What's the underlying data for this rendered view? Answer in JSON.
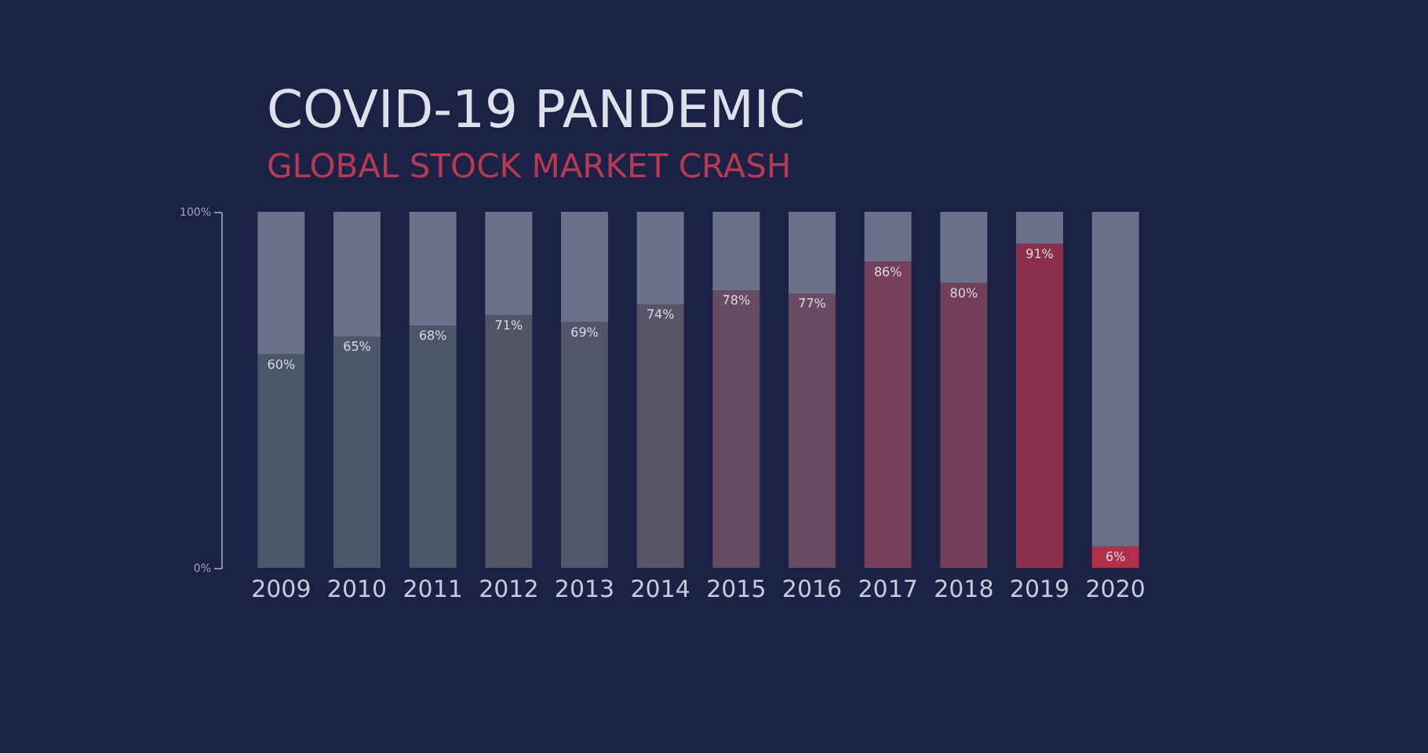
{
  "chart_data": {
    "type": "bar",
    "title": "COVID-19 PANDEMIC",
    "subtitle": "GLOBAL STOCK MARKET CRASH",
    "stacked": true,
    "grid": false,
    "categories": [
      "2009",
      "2010",
      "2011",
      "2012",
      "2013",
      "2014",
      "2015",
      "2016",
      "2017",
      "2018",
      "2019",
      "2020"
    ],
    "series": [
      {
        "colors": [
          "#4b5668",
          "#4e5769",
          "#4d5669",
          "#525568",
          "#52566a",
          "#5a5468",
          "#654c62",
          "#694a61",
          "#74405a",
          "#733f58",
          "#8a2f4c",
          "#b0304a"
        ],
        "values": [
          60,
          65,
          68,
          71,
          69,
          74,
          78,
          77,
          86,
          80,
          91,
          6
        ],
        "value_labels": [
          "60%",
          "65%",
          "68%",
          "71%",
          "69%",
          "74%",
          "78%",
          "77%",
          "86%",
          "80%",
          "91%",
          "6%"
        ]
      },
      {
        "color": "#6b7189",
        "values": [
          40,
          35,
          32,
          29,
          31,
          26,
          22,
          23,
          14,
          20,
          9,
          94
        ]
      }
    ],
    "ylim": [
      0,
      100
    ],
    "yticks": [
      {
        "value": 0,
        "label": "0%"
      },
      {
        "value": 100,
        "label": "100%"
      }
    ]
  }
}
